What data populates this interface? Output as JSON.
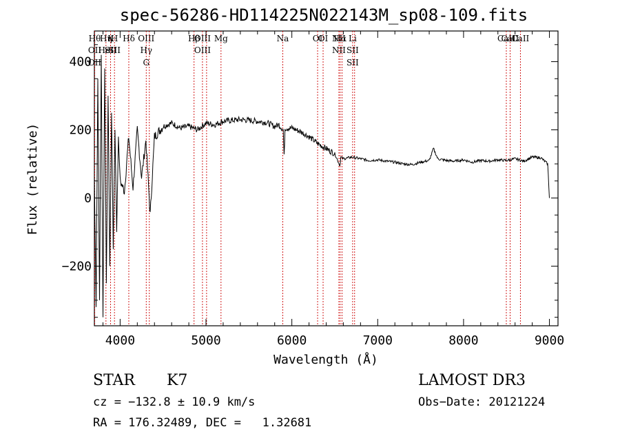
{
  "chart_data": {
    "type": "line",
    "title": "spec-56286-HD114225N022143M_sp08-109.fits",
    "xlabel": "Wavelength (Å)",
    "ylabel": "Flux (relative)",
    "xlim": [
      3700,
      9100
    ],
    "ylim": [
      -375,
      490
    ],
    "xticks": [
      4000,
      5000,
      6000,
      7000,
      8000,
      9000
    ],
    "yticks": [
      -200,
      0,
      200,
      400
    ],
    "series": [
      {
        "name": "flux",
        "x": [
          3700,
          3720,
          3740,
          3760,
          3780,
          3800,
          3820,
          3840,
          3860,
          3880,
          3900,
          3920,
          3940,
          3960,
          3980,
          4000,
          4050,
          4100,
          4150,
          4200,
          4250,
          4300,
          4350,
          4400,
          4500,
          4600,
          4700,
          4800,
          4900,
          5000,
          5100,
          5200,
          5300,
          5400,
          5500,
          5600,
          5700,
          5800,
          5850,
          5900,
          5910,
          5920,
          6000,
          6100,
          6200,
          6300,
          6400,
          6500,
          6560,
          6570,
          6600,
          6700,
          6800,
          6900,
          7000,
          7100,
          7200,
          7300,
          7400,
          7500,
          7600,
          7650,
          7700,
          7800,
          7900,
          8000,
          8100,
          8200,
          8300,
          8400,
          8500,
          8600,
          8700,
          8800,
          8900,
          8980,
          9000
        ],
        "values": [
          60,
          -320,
          350,
          -300,
          420,
          -350,
          380,
          -250,
          300,
          -200,
          250,
          -150,
          200,
          -100,
          180,
          50,
          20,
          180,
          30,
          200,
          60,
          170,
          -50,
          180,
          210,
          220,
          205,
          210,
          200,
          220,
          215,
          225,
          228,
          230,
          228,
          225,
          222,
          210,
          215,
          200,
          120,
          205,
          205,
          195,
          180,
          160,
          145,
          130,
          95,
          120,
          115,
          120,
          115,
          110,
          112,
          108,
          105,
          100,
          98,
          105,
          110,
          145,
          115,
          110,
          108,
          112,
          105,
          110,
          108,
          112,
          110,
          115,
          108,
          120,
          118,
          100,
          0
        ]
      }
    ],
    "lines": [
      {
        "x": 3704,
        "labels": [
          "Hθ",
          "OII",
          "OII"
        ]
      },
      {
        "x": 3835,
        "labels": [
          "Hη",
          "HeI"
        ]
      },
      {
        "x": 3889,
        "labels": [
          "K",
          "SII"
        ]
      },
      {
        "x": 3934,
        "labels": [
          "H",
          "SII"
        ]
      },
      {
        "x": 4101,
        "labels": [
          "Hδ"
        ]
      },
      {
        "x": 4304,
        "labels": [
          "OIII",
          "Hγ",
          "G"
        ]
      },
      {
        "x": 4340,
        "labels": []
      },
      {
        "x": 4861,
        "labels": [
          "Hβ"
        ]
      },
      {
        "x": 4959,
        "labels": [
          "OIII",
          "OIII"
        ]
      },
      {
        "x": 5007,
        "labels": []
      },
      {
        "x": 5175,
        "labels": [
          "Mg"
        ]
      },
      {
        "x": 5894,
        "labels": [
          "Na"
        ]
      },
      {
        "x": 6300,
        "labels": [
          "OI"
        ]
      },
      {
        "x": 6364,
        "labels": [
          "OI"
        ]
      },
      {
        "x": 6548,
        "labels": [
          "NII",
          "NII"
        ]
      },
      {
        "x": 6563,
        "labels": [
          "Hα"
        ]
      },
      {
        "x": 6584,
        "labels": []
      },
      {
        "x": 6708,
        "labels": [
          "Li",
          "SII",
          "SII"
        ]
      },
      {
        "x": 6731,
        "labels": []
      },
      {
        "x": 8498,
        "labels": [
          "CaII"
        ]
      },
      {
        "x": 8542,
        "labels": [
          "CaII"
        ]
      },
      {
        "x": 8662,
        "labels": [
          "CaII"
        ]
      }
    ]
  },
  "info": {
    "object_type": "STAR",
    "subclass": "K7",
    "survey": "LAMOST DR3",
    "cz": "cz = −132.8 ± 10.9 km/s",
    "obs_date": "Obs−Date: 20121224",
    "coords": "RA = 176.32489, DEC =   1.32681"
  }
}
